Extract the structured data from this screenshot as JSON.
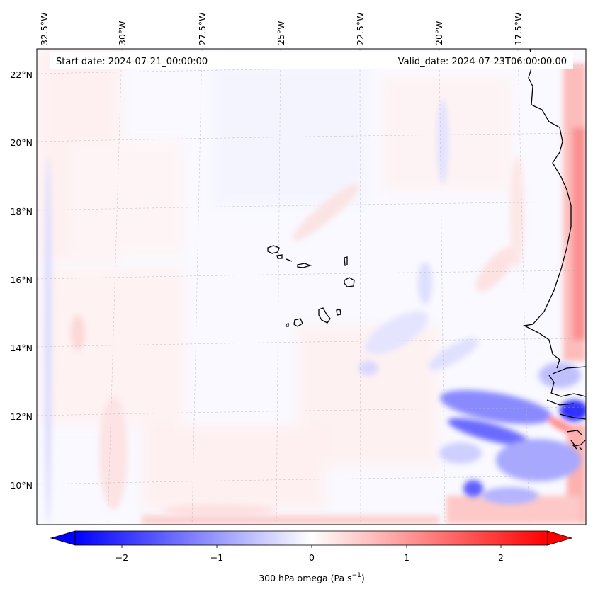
{
  "map": {
    "start_date_label": "Start date: 2024-07-21_00:00:00",
    "valid_date_label": "Valid_date: 2024-07-23T06:00:00.00",
    "lon_labels": [
      "32.5°W",
      "30°W",
      "27.5°W",
      "25°W",
      "22.5°W",
      "20°W",
      "17.5°W"
    ],
    "lat_labels": [
      "22°N",
      "20°N",
      "18°N",
      "16°N",
      "14°N",
      "12°N",
      "10°N"
    ],
    "extent": {
      "lon_min": -33.0,
      "lon_max": -15.8,
      "lat_min": 8.9,
      "lat_max": 22.8
    }
  },
  "colorbar": {
    "label_prefix": "300 hPa omega (Pa s",
    "label_exp": "−1",
    "label_suffix": ")",
    "ticks": [
      "−2",
      "−1",
      "0",
      "1",
      "2"
    ],
    "range": [
      -2.6,
      2.6
    ],
    "cmap": "bwr",
    "colors": {
      "negative": "#0000ff",
      "zero": "#ffffff",
      "positive": "#ff0000"
    }
  }
}
